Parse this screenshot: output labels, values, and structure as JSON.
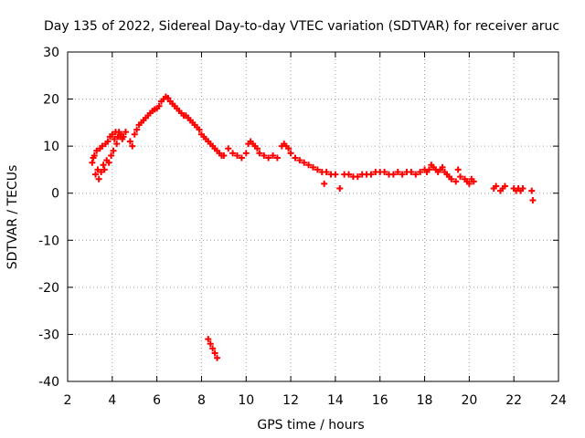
{
  "chart_data": {
    "type": "scatter",
    "title": "Day 135 of 2022, Sidereal Day-to-day VTEC variation (SDTVAR) for receiver aruc",
    "xlabel": "GPS time / hours",
    "ylabel": "SDTVAR / TECUs",
    "xlim": [
      2,
      24
    ],
    "ylim": [
      -40,
      30
    ],
    "xticks": [
      2,
      4,
      6,
      8,
      10,
      12,
      14,
      16,
      18,
      20,
      22,
      24
    ],
    "yticks": [
      -40,
      -30,
      -20,
      -10,
      0,
      10,
      20,
      30
    ],
    "grid": true,
    "marker": "plus",
    "color": "#ff0000",
    "series": [
      {
        "name": "SDTVAR",
        "points": [
          [
            3.1,
            6.5
          ],
          [
            3.15,
            7.5
          ],
          [
            3.2,
            8.0
          ],
          [
            3.25,
            4.0
          ],
          [
            3.3,
            9.0
          ],
          [
            3.35,
            5.0
          ],
          [
            3.4,
            3.0
          ],
          [
            3.45,
            9.5
          ],
          [
            3.5,
            4.5
          ],
          [
            3.55,
            10.0
          ],
          [
            3.6,
            6.0
          ],
          [
            3.65,
            5.0
          ],
          [
            3.7,
            10.5
          ],
          [
            3.75,
            7.0
          ],
          [
            3.8,
            11.0
          ],
          [
            3.85,
            6.5
          ],
          [
            3.9,
            12.0
          ],
          [
            3.95,
            8.0
          ],
          [
            4.0,
            12.5
          ],
          [
            4.05,
            9.0
          ],
          [
            4.1,
            11.5
          ],
          [
            4.15,
            13.0
          ],
          [
            4.2,
            10.5
          ],
          [
            4.25,
            12.0
          ],
          [
            4.3,
            13.0
          ],
          [
            4.35,
            12.0
          ],
          [
            4.4,
            12.5
          ],
          [
            4.45,
            11.5
          ],
          [
            4.5,
            12.0
          ],
          [
            4.6,
            13.0
          ],
          [
            4.8,
            11.0
          ],
          [
            4.9,
            10.0
          ],
          [
            5.0,
            12.5
          ],
          [
            5.1,
            13.5
          ],
          [
            5.2,
            14.5
          ],
          [
            5.3,
            15.0
          ],
          [
            5.4,
            15.5
          ],
          [
            5.5,
            16.0
          ],
          [
            5.6,
            16.5
          ],
          [
            5.7,
            17.0
          ],
          [
            5.8,
            17.5
          ],
          [
            5.9,
            17.8
          ],
          [
            6.0,
            18.0
          ],
          [
            6.1,
            18.5
          ],
          [
            6.2,
            19.5
          ],
          [
            6.3,
            20.0
          ],
          [
            6.4,
            20.5
          ],
          [
            6.5,
            20.2
          ],
          [
            6.6,
            19.5
          ],
          [
            6.7,
            19.0
          ],
          [
            6.8,
            18.5
          ],
          [
            6.9,
            18.0
          ],
          [
            7.0,
            17.5
          ],
          [
            7.1,
            17.0
          ],
          [
            7.2,
            16.5
          ],
          [
            7.3,
            16.5
          ],
          [
            7.4,
            16.0
          ],
          [
            7.5,
            15.5
          ],
          [
            7.6,
            15.0
          ],
          [
            7.7,
            14.5
          ],
          [
            7.8,
            14.0
          ],
          [
            7.9,
            13.5
          ],
          [
            8.0,
            12.5
          ],
          [
            8.1,
            12.0
          ],
          [
            8.2,
            11.5
          ],
          [
            8.3,
            11.0
          ],
          [
            8.4,
            10.5
          ],
          [
            8.5,
            10.0
          ],
          [
            8.6,
            9.5
          ],
          [
            8.7,
            9.0
          ],
          [
            8.8,
            8.5
          ],
          [
            8.9,
            8.0
          ],
          [
            9.0,
            8.0
          ],
          [
            9.2,
            9.5
          ],
          [
            9.4,
            8.5
          ],
          [
            9.6,
            8.0
          ],
          [
            9.8,
            7.5
          ],
          [
            10.0,
            8.5
          ],
          [
            10.1,
            10.5
          ],
          [
            10.2,
            11.0
          ],
          [
            10.3,
            10.5
          ],
          [
            10.4,
            10.0
          ],
          [
            10.5,
            9.5
          ],
          [
            10.6,
            8.5
          ],
          [
            10.8,
            8.0
          ],
          [
            11.0,
            7.5
          ],
          [
            11.2,
            8.0
          ],
          [
            11.4,
            7.5
          ],
          [
            11.6,
            10.0
          ],
          [
            11.7,
            10.5
          ],
          [
            11.8,
            10.0
          ],
          [
            11.9,
            9.5
          ],
          [
            12.0,
            8.5
          ],
          [
            12.2,
            7.5
          ],
          [
            12.4,
            7.0
          ],
          [
            12.6,
            6.5
          ],
          [
            12.8,
            6.0
          ],
          [
            13.0,
            5.5
          ],
          [
            13.2,
            5.0
          ],
          [
            13.4,
            4.5
          ],
          [
            13.5,
            2.0
          ],
          [
            13.6,
            4.5
          ],
          [
            13.8,
            4.0
          ],
          [
            14.0,
            4.0
          ],
          [
            14.2,
            1.0
          ],
          [
            14.4,
            4.0
          ],
          [
            14.6,
            4.0
          ],
          [
            14.8,
            3.5
          ],
          [
            15.0,
            3.5
          ],
          [
            15.2,
            4.0
          ],
          [
            15.4,
            4.0
          ],
          [
            15.6,
            4.0
          ],
          [
            15.8,
            4.5
          ],
          [
            16.0,
            4.5
          ],
          [
            16.2,
            4.5
          ],
          [
            16.4,
            4.0
          ],
          [
            16.6,
            4.0
          ],
          [
            16.8,
            4.5
          ],
          [
            17.0,
            4.0
          ],
          [
            17.2,
            4.5
          ],
          [
            17.4,
            4.5
          ],
          [
            17.6,
            4.0
          ],
          [
            17.8,
            4.5
          ],
          [
            18.0,
            5.0
          ],
          [
            18.1,
            4.5
          ],
          [
            18.2,
            5.0
          ],
          [
            18.3,
            6.0
          ],
          [
            18.4,
            5.5
          ],
          [
            18.5,
            5.0
          ],
          [
            18.6,
            4.5
          ],
          [
            18.7,
            5.0
          ],
          [
            18.8,
            5.5
          ],
          [
            18.9,
            4.5
          ],
          [
            19.0,
            4.0
          ],
          [
            19.1,
            3.5
          ],
          [
            19.2,
            3.0
          ],
          [
            19.4,
            2.5
          ],
          [
            19.5,
            5.0
          ],
          [
            19.6,
            3.5
          ],
          [
            19.8,
            3.0
          ],
          [
            19.9,
            2.5
          ],
          [
            20.0,
            2.0
          ],
          [
            20.1,
            3.0
          ],
          [
            20.2,
            2.5
          ],
          [
            21.1,
            1.0
          ],
          [
            21.2,
            1.5
          ],
          [
            21.4,
            0.5
          ],
          [
            21.5,
            1.0
          ],
          [
            21.6,
            1.5
          ],
          [
            22.0,
            1.0
          ],
          [
            22.1,
            0.5
          ],
          [
            22.2,
            1.0
          ],
          [
            22.3,
            0.5
          ],
          [
            22.4,
            1.0
          ],
          [
            22.8,
            0.5
          ],
          [
            22.85,
            -1.5
          ],
          [
            8.3,
            -31.0
          ],
          [
            8.4,
            -32.0
          ],
          [
            8.5,
            -33.0
          ],
          [
            8.6,
            -34.0
          ],
          [
            8.7,
            -35.0
          ]
        ]
      }
    ]
  }
}
